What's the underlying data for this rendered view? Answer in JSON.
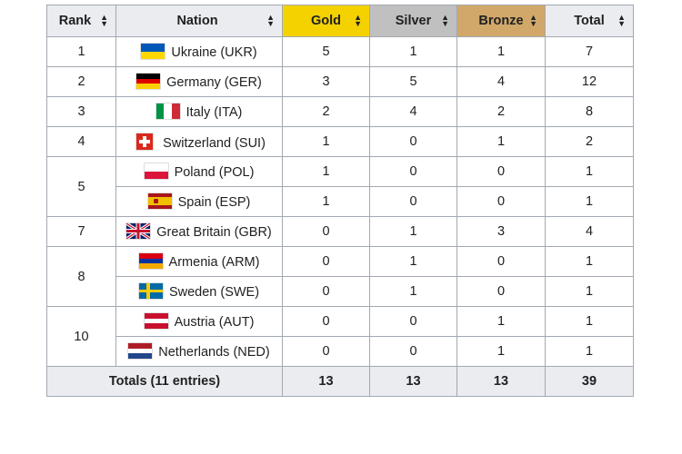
{
  "headers": {
    "rank": "Rank",
    "nation": "Nation",
    "gold": "Gold",
    "silver": "Silver",
    "bronze": "Bronze",
    "total": "Total",
    "sort_up": "▲",
    "sort_down": "▼"
  },
  "colors": {
    "gold": "#f4d200",
    "silver": "#c0c0c0",
    "bronze": "#d1a86a",
    "header_bg": "#eaecf0",
    "border": "#a2a9b1"
  },
  "rows": [
    {
      "rank": "1",
      "nation": "Ukraine (UKR)",
      "flag": "ukraine-flag-icon",
      "gold": "5",
      "silver": "1",
      "bronze": "1",
      "total": "7"
    },
    {
      "rank": "2",
      "nation": "Germany (GER)",
      "flag": "germany-flag-icon",
      "gold": "3",
      "silver": "5",
      "bronze": "4",
      "total": "12"
    },
    {
      "rank": "3",
      "nation": "Italy (ITA)",
      "flag": "italy-flag-icon",
      "gold": "2",
      "silver": "4",
      "bronze": "2",
      "total": "8"
    },
    {
      "rank": "4",
      "nation": "Switzerland (SUI)",
      "flag": "switzerland-flag-icon",
      "gold": "1",
      "silver": "0",
      "bronze": "1",
      "total": "2"
    },
    {
      "rank": "5",
      "nation": "Poland (POL)",
      "flag": "poland-flag-icon",
      "gold": "1",
      "silver": "0",
      "bronze": "0",
      "total": "1"
    },
    {
      "rank": "5",
      "nation": "Spain (ESP)",
      "flag": "spain-flag-icon",
      "gold": "1",
      "silver": "0",
      "bronze": "0",
      "total": "1"
    },
    {
      "rank": "7",
      "nation": "Great Britain (GBR)",
      "flag": "great-britain-flag-icon",
      "gold": "0",
      "silver": "1",
      "bronze": "3",
      "total": "4"
    },
    {
      "rank": "8",
      "nation": "Armenia (ARM)",
      "flag": "armenia-flag-icon",
      "gold": "0",
      "silver": "1",
      "bronze": "0",
      "total": "1"
    },
    {
      "rank": "8",
      "nation": "Sweden (SWE)",
      "flag": "sweden-flag-icon",
      "gold": "0",
      "silver": "1",
      "bronze": "0",
      "total": "1"
    },
    {
      "rank": "10",
      "nation": "Austria (AUT)",
      "flag": "austria-flag-icon",
      "gold": "0",
      "silver": "0",
      "bronze": "1",
      "total": "1"
    },
    {
      "rank": "10",
      "nation": "Netherlands (NED)",
      "flag": "netherlands-flag-icon",
      "gold": "0",
      "silver": "0",
      "bronze": "1",
      "total": "1"
    }
  ],
  "totals": {
    "label": "Totals (11 entries)",
    "gold": "13",
    "silver": "13",
    "bronze": "13",
    "total": "39"
  }
}
